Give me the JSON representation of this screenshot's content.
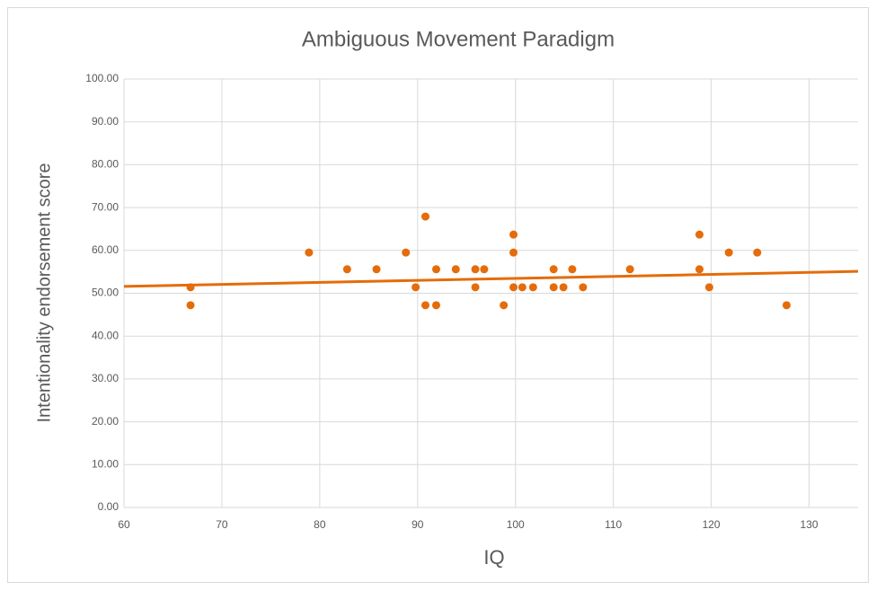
{
  "chart_data": {
    "type": "scatter",
    "title": "Ambiguous Movement Paradigm",
    "xlabel": "IQ",
    "ylabel": "Intentionality endorsement score",
    "series": [
      {
        "name": "Intentionality endorsement score",
        "color": "#e46c0a",
        "x": [
          66.8,
          66.8,
          78.9,
          82.8,
          85.8,
          88.8,
          89.8,
          90.8,
          90.8,
          91.9,
          91.9,
          93.9,
          95.9,
          95.9,
          96.8,
          98.8,
          99.8,
          99.8,
          99.8,
          100.7,
          101.8,
          103.9,
          103.9,
          104.9,
          105.8,
          106.9,
          111.7,
          118.8,
          118.8,
          119.8,
          121.8,
          124.7,
          127.7
        ],
        "values": [
          51.4,
          47.2,
          59.5,
          55.6,
          55.6,
          59.5,
          51.4,
          67.9,
          47.2,
          55.6,
          47.2,
          55.6,
          55.6,
          51.4,
          55.6,
          47.2,
          63.7,
          59.5,
          51.4,
          51.4,
          51.4,
          55.6,
          51.4,
          51.4,
          55.6,
          51.4,
          55.6,
          63.7,
          55.6,
          51.4,
          59.5,
          59.5,
          47.2
        ]
      }
    ],
    "trendline": {
      "color": "#e46c0a",
      "x": [
        60,
        135
      ],
      "values": [
        51.6,
        55.1
      ]
    },
    "xlim": [
      60,
      135
    ],
    "xticks": [
      60,
      70,
      80,
      90,
      100,
      110,
      120,
      130
    ],
    "ylim": [
      0,
      100
    ],
    "yticks": [
      {
        "value": 0,
        "label": "0.00"
      },
      {
        "value": 10,
        "label": "10.00"
      },
      {
        "value": 20,
        "label": "20.00"
      },
      {
        "value": 30,
        "label": "30.00"
      },
      {
        "value": 40,
        "label": "40.00"
      },
      {
        "value": 50,
        "label": "50.00"
      },
      {
        "value": 60,
        "label": "60.00"
      },
      {
        "value": 70,
        "label": "70.00"
      },
      {
        "value": 80,
        "label": "80.00"
      },
      {
        "value": 90,
        "label": "90.00"
      },
      {
        "value": 100,
        "label": "100.00"
      }
    ],
    "grid": true
  }
}
